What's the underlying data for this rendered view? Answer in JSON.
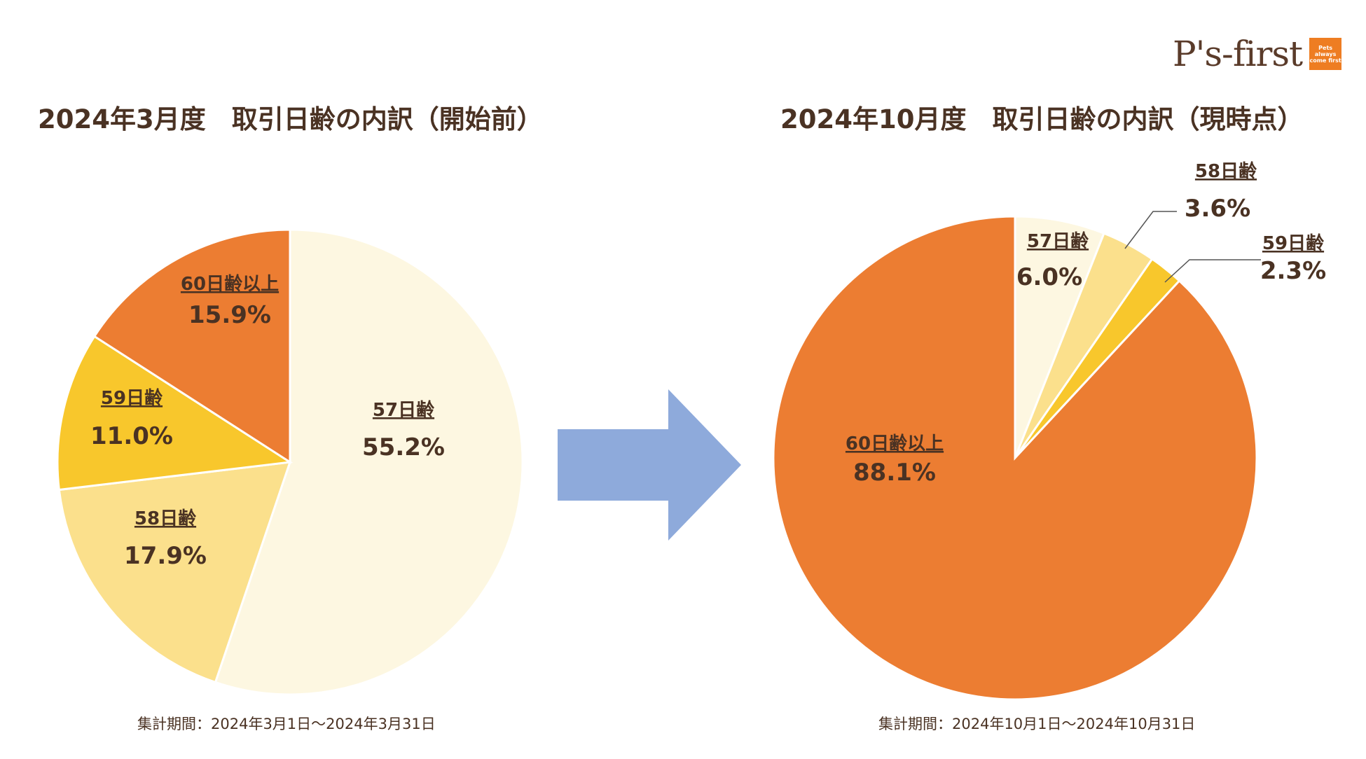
{
  "logo": {
    "text": "P's-first",
    "tagline": "Pets always come first"
  },
  "chart_data": [
    {
      "type": "pie",
      "title": "2024年3月度　取引日齢の内訳（開始前）",
      "period": "集計期間：2024年3月1日〜2024年3月31日",
      "slices": [
        {
          "label": "57日齢",
          "value": 55.2,
          "display": "55.2%",
          "color": "#fdf7e1"
        },
        {
          "label": "58日齢",
          "value": 17.9,
          "display": "17.9%",
          "color": "#fbe08c"
        },
        {
          "label": "59日齢",
          "value": 11.0,
          "display": "11.0%",
          "color": "#f8c72c"
        },
        {
          "label": "60日齢以上",
          "value": 15.9,
          "display": "15.9%",
          "color": "#ec7d32"
        }
      ]
    },
    {
      "type": "pie",
      "title": "2024年10月度　取引日齢の内訳（現時点）",
      "period": "集計期間：2024年10月1日〜2024年10月31日",
      "slices": [
        {
          "label": "57日齢",
          "value": 6.0,
          "display": "6.0%",
          "color": "#fdf7e1"
        },
        {
          "label": "58日齢",
          "value": 3.6,
          "display": "3.6%",
          "color": "#fbe08c"
        },
        {
          "label": "59日齢",
          "value": 2.3,
          "display": "2.3%",
          "color": "#f8c72c"
        },
        {
          "label": "60日齢以上",
          "value": 88.1,
          "display": "88.1%",
          "color": "#ec7d32"
        }
      ]
    }
  ],
  "arrow_color": "#8eaadb"
}
